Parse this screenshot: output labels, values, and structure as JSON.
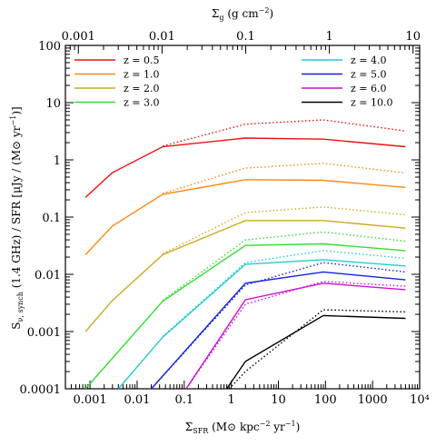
{
  "chart_data": {
    "type": "line",
    "xlabel": "Σ_SFR (M⊙ kpc⁻² yr⁻¹)",
    "xlabel_top": "Σ_g (g cm⁻²)",
    "ylabel": "S_ν,synch (1.4 GHz) / SFR [μJy / (M⊙ yr⁻¹)]",
    "x_scale": "log",
    "y_scale": "log",
    "xlim": [
      0.0003,
      10000
    ],
    "ylim": [
      0.0001,
      100
    ],
    "top_axis_xlim": [
      0.0007,
      12
    ],
    "x_tick_labels": [
      "0.001",
      "0.01",
      "0.1",
      "1",
      "10",
      "100",
      "1000",
      "10⁴"
    ],
    "x_tick_values": [
      0.001,
      0.01,
      0.1,
      1,
      10,
      100,
      1000,
      10000
    ],
    "y_tick_labels": [
      "0.0001",
      "0.001",
      "0.01",
      "0.1",
      "1",
      "10",
      "100"
    ],
    "y_tick_values": [
      0.0001,
      0.001,
      0.01,
      0.1,
      1,
      10,
      100
    ],
    "top_tick_labels": [
      "0.001",
      "0.01",
      "0.1",
      "1",
      "10"
    ],
    "top_tick_values": [
      0.001,
      0.01,
      0.1,
      1,
      10
    ],
    "legend_position": "top",
    "series": [
      {
        "name": "z = 0.5",
        "color": "#ee1111",
        "solid": {
          "x": [
            0.0008,
            0.003,
            0.035,
            2,
            90,
            5000
          ],
          "y": [
            0.22,
            0.6,
            1.7,
            2.4,
            2.3,
            1.7
          ]
        },
        "dotted": {
          "x": [
            0.035,
            2,
            90,
            5000
          ],
          "y": [
            1.75,
            4.2,
            5,
            3.2
          ]
        }
      },
      {
        "name": "z = 1.0",
        "color": "#ff8811",
        "solid": {
          "x": [
            0.0008,
            0.003,
            0.035,
            2,
            90,
            5000
          ],
          "y": [
            0.022,
            0.07,
            0.25,
            0.45,
            0.44,
            0.33
          ]
        },
        "dotted": {
          "x": [
            0.035,
            2,
            90,
            5000
          ],
          "y": [
            0.26,
            0.72,
            0.87,
            0.59
          ]
        }
      },
      {
        "name": "z = 2.0",
        "color": "#ccaa22",
        "solid": {
          "x": [
            0.0008,
            0.003,
            0.035,
            2,
            90,
            5000
          ],
          "y": [
            0.001,
            0.0035,
            0.022,
            0.087,
            0.087,
            0.064
          ]
        },
        "dotted": {
          "x": [
            0.035,
            2,
            90,
            5000
          ],
          "y": [
            0.023,
            0.12,
            0.15,
            0.11
          ]
        }
      },
      {
        "name": "z = 3.0",
        "color": "#33dd33",
        "solid": {
          "x": [
            0.0008,
            0.035,
            2,
            90,
            5000
          ],
          "y": [
            0.0001,
            0.0034,
            0.032,
            0.034,
            0.026
          ]
        },
        "dotted": {
          "x": [
            0.035,
            2,
            90,
            5000
          ],
          "y": [
            0.0035,
            0.04,
            0.055,
            0.038
          ]
        }
      },
      {
        "name": "z = 4.0",
        "color": "#22cccc",
        "solid": {
          "x": [
            0.004,
            0.035,
            2,
            90,
            5000
          ],
          "y": [
            0.0001,
            0.0008,
            0.015,
            0.018,
            0.014
          ]
        },
        "dotted": {
          "x": [
            0.035,
            2,
            90,
            5000
          ],
          "y": [
            0.00082,
            0.016,
            0.026,
            0.019
          ]
        }
      },
      {
        "name": "z = 5.0",
        "color": "#1122dd",
        "solid": {
          "x": [
            0.02,
            2,
            90,
            5000
          ],
          "y": [
            0.0001,
            0.007,
            0.011,
            0.008
          ]
        },
        "dotted": {
          "x": [
            0.02,
            2,
            90,
            5000
          ],
          "y": [
            0.0001,
            0.0065,
            0.016,
            0.011
          ]
        }
      },
      {
        "name": "z = 6.0",
        "color": "#cc11cc",
        "solid": {
          "x": [
            0.11,
            2,
            90,
            5000
          ],
          "y": [
            0.0001,
            0.0036,
            0.007,
            0.0054
          ]
        },
        "dotted": {
          "x": [
            0.11,
            2,
            90,
            5000
          ],
          "y": [
            0.0001,
            0.003,
            0.0075,
            0.0062
          ]
        }
      },
      {
        "name": "z = 10.0",
        "color": "#000000",
        "solid": {
          "x": [
            0.8,
            2,
            90,
            5000
          ],
          "y": [
            0.0001,
            0.0003,
            0.0019,
            0.0017
          ]
        },
        "dotted": {
          "x": [
            0.9,
            2,
            90,
            5000
          ],
          "y": [
            0.0001,
            0.0002,
            0.0024,
            0.0022
          ]
        }
      }
    ]
  }
}
